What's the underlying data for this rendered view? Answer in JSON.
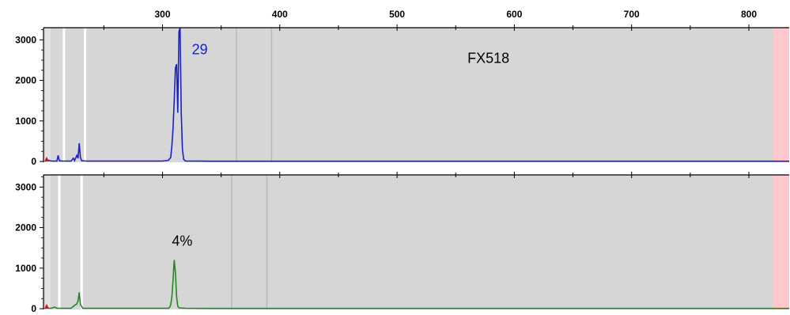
{
  "chart_data": {
    "type": "line",
    "x_axis": {
      "ticks": [
        300,
        400,
        500,
        600,
        700,
        800
      ],
      "range": [
        200,
        833
      ]
    },
    "panels": [
      {
        "id": "top",
        "ylim": [
          0,
          3300
        ],
        "y_ticks": [
          0,
          1000,
          2000,
          3000
        ],
        "series_color": "#1a20c8",
        "series": [
          {
            "x": [
              200,
              201,
              204,
              206,
              210,
              211,
              212,
              214,
              222,
              224,
              225,
              227,
              228,
              229,
              230,
              231,
              235,
              240,
              245,
              250,
              260,
              270,
              280,
              290,
              300,
              305,
              307,
              308,
              309,
              310,
              311,
              312,
              313,
              314,
              315,
              316,
              317,
              318,
              319,
              320,
              325,
              340,
              360,
              380,
              400,
              450,
              500,
              550,
              600,
              650,
              700,
              750,
              800,
              833
            ],
            "y": [
              0,
              40,
              20,
              10,
              10,
              150,
              20,
              10,
              10,
              80,
              20,
              150,
              80,
              450,
              100,
              20,
              10,
              10,
              10,
              10,
              10,
              10,
              10,
              10,
              10,
              30,
              100,
              400,
              800,
              1500,
              2300,
              2400,
              1200,
              3200,
              3300,
              1200,
              300,
              60,
              20,
              10,
              10,
              5,
              5,
              5,
              5,
              5,
              5,
              5,
              5,
              5,
              5,
              5,
              5,
              5
            ]
          }
        ],
        "lanes": {
          "white": [
            216,
            234
          ],
          "gray": [
            363,
            393
          ]
        },
        "annotations": [
          {
            "text": "29",
            "x": 325,
            "y": 2650,
            "color": "#1a20c8"
          },
          {
            "text": "FX518",
            "x": 560,
            "y": 2430,
            "color": "#000000"
          }
        ]
      },
      {
        "id": "bottom",
        "ylim": [
          0,
          3300
        ],
        "y_ticks": [
          0,
          1000,
          2000,
          3000
        ],
        "series_color": "#1f8a1f",
        "series": [
          {
            "x": [
              200,
              201,
              203,
              205,
              208,
              210,
              215,
              222,
              225,
              227,
              228,
              229,
              230,
              232,
              240,
              250,
              260,
              270,
              280,
              290,
              300,
              305,
              306,
              307,
              308,
              309,
              310,
              311,
              312,
              313,
              314,
              320,
              340,
              360,
              380,
              400,
              450,
              500,
              550,
              600,
              650,
              700,
              750,
              800,
              833
            ],
            "y": [
              0,
              30,
              10,
              10,
              40,
              10,
              10,
              10,
              80,
              120,
              200,
              400,
              100,
              10,
              10,
              10,
              10,
              10,
              10,
              10,
              10,
              10,
              30,
              100,
              300,
              700,
              1200,
              900,
              300,
              60,
              20,
              10,
              5,
              5,
              5,
              5,
              5,
              5,
              5,
              5,
              5,
              5,
              5,
              5,
              5
            ]
          }
        ],
        "lanes": {
          "white": [
            212,
            231
          ],
          "gray": [
            359,
            389
          ]
        },
        "annotations": [
          {
            "text": "4%",
            "x": 308,
            "y": 1550,
            "color": "#000000"
          }
        ]
      }
    ],
    "colors": {
      "plot_bg": "#d6d6d6",
      "lane_white": "#ffffff",
      "lane_gray": "#b9b9b9",
      "excluded_region": "#ffc8cc",
      "axis": "#000000",
      "baseline_marker": "#e01010"
    }
  }
}
